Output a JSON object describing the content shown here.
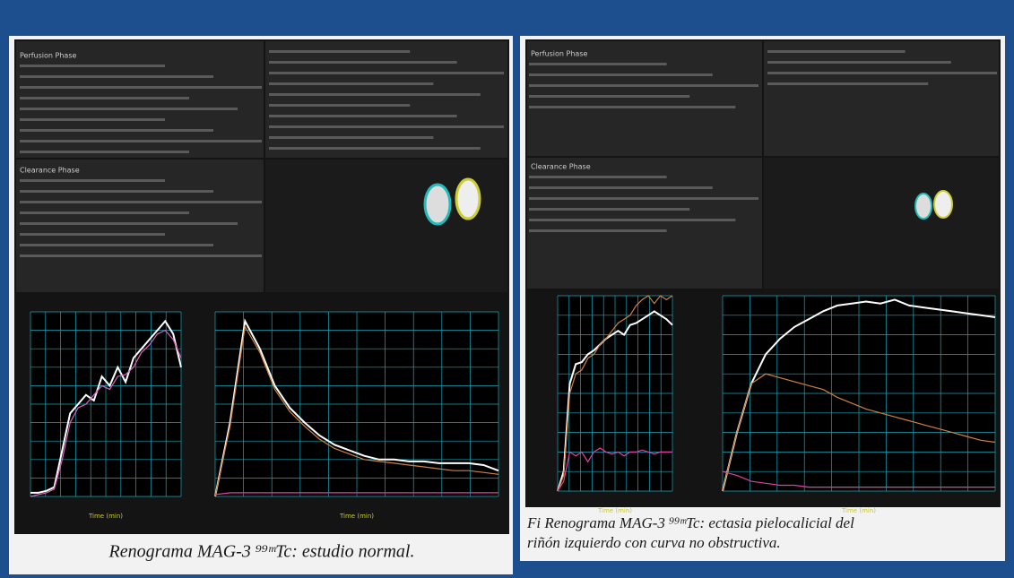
{
  "panels": [
    {
      "perfusion_label": "Perfusion Phase",
      "clearance_label": "Clearance Phase",
      "plots": [
        {
          "x_label": "Time (min)",
          "ylim": [
            0,
            100
          ],
          "series": [
            {
              "color": "#ffffff",
              "values": [
                2,
                2,
                3,
                5,
                25,
                45,
                50,
                55,
                52,
                65,
                60,
                70,
                62,
                75,
                80,
                85,
                90,
                95,
                88,
                70
              ]
            },
            {
              "color": "#e060c0",
              "values": [
                0,
                1,
                2,
                4,
                20,
                40,
                48,
                50,
                55,
                60,
                58,
                65,
                66,
                70,
                78,
                82,
                88,
                90,
                85,
                75
              ]
            }
          ]
        },
        {
          "x_label": "Time (min)",
          "ylim": [
            0,
            100
          ],
          "series": [
            {
              "color": "#ffffff",
              "values": [
                0,
                40,
                95,
                80,
                60,
                48,
                40,
                33,
                28,
                25,
                22,
                20,
                20,
                19,
                19,
                18,
                18,
                18,
                17,
                14
              ]
            },
            {
              "color": "#d08040",
              "values": [
                0,
                38,
                92,
                78,
                58,
                46,
                38,
                31,
                26,
                23,
                20,
                19,
                18,
                17,
                16,
                15,
                14,
                14,
                13,
                12
              ]
            },
            {
              "color": "#e040a0",
              "values": [
                1,
                2,
                2,
                2,
                2,
                2,
                2,
                2,
                2,
                2,
                2,
                2,
                2,
                2,
                2,
                2,
                2,
                2,
                2,
                2
              ]
            }
          ]
        }
      ]
    },
    {
      "perfusion_label": "Perfusion Phase",
      "clearance_label": "Clearance Phase",
      "plots": [
        {
          "x_label": "Time (min)",
          "ylim": [
            0,
            100
          ],
          "series": [
            {
              "color": "#ffffff",
              "values": [
                0,
                10,
                55,
                65,
                66,
                70,
                72,
                75,
                78,
                80,
                82,
                80,
                85,
                86,
                88,
                90,
                92,
                90,
                88,
                85
              ]
            },
            {
              "color": "#d08040",
              "values": [
                0,
                8,
                50,
                60,
                62,
                68,
                70,
                75,
                78,
                82,
                86,
                88,
                90,
                95,
                98,
                100,
                96,
                100,
                98,
                100
              ]
            },
            {
              "color": "#e040a0",
              "values": [
                0,
                5,
                20,
                18,
                20,
                15,
                20,
                22,
                20,
                19,
                20,
                18,
                20,
                20,
                21,
                20,
                19,
                20,
                20,
                20
              ]
            }
          ]
        },
        {
          "x_label": "Time (min)",
          "ylim": [
            0,
            100
          ],
          "series": [
            {
              "color": "#ffffff",
              "values": [
                0,
                30,
                55,
                70,
                78,
                84,
                88,
                92,
                95,
                96,
                97,
                96,
                98,
                95,
                94,
                93,
                92,
                91,
                90,
                89
              ]
            },
            {
              "color": "#d08040",
              "values": [
                0,
                30,
                55,
                60,
                58,
                56,
                54,
                52,
                48,
                45,
                42,
                40,
                38,
                36,
                34,
                32,
                30,
                28,
                26,
                25
              ]
            },
            {
              "color": "#e040a0",
              "values": [
                10,
                8,
                5,
                4,
                3,
                3,
                2,
                2,
                2,
                2,
                2,
                2,
                2,
                2,
                2,
                2,
                2,
                2,
                2,
                2
              ]
            }
          ]
        }
      ]
    }
  ],
  "captions": [
    {
      "lines": [
        "Renograma MAG-3 ⁹⁹ᵐTc: estudio normal."
      ]
    },
    {
      "lines": [
        "Fi          Renograma MAG-3 ⁹⁹ᵐTc: ectasia pielocalicial del",
        "riñón izquierdo con curva no obstructiva."
      ]
    }
  ]
}
